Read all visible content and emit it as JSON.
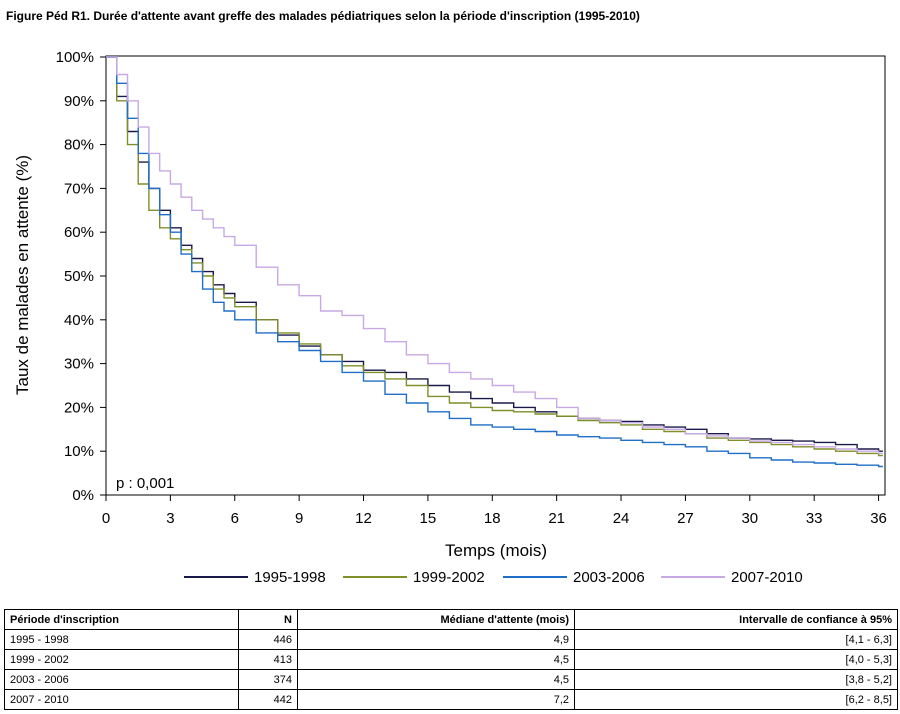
{
  "figure": {
    "title": "Figure Péd R1. Durée d'attente avant greffe des malades pédiatriques selon la période d'inscription (1995-2010)"
  },
  "chart_data": {
    "type": "line",
    "subtype": "step",
    "xlabel": "Temps (mois)",
    "ylabel": "Taux de malades en attente (%)",
    "xlim": [
      0,
      36.3
    ],
    "ylim": [
      0,
      100
    ],
    "x_ticks": [
      0,
      3,
      6,
      9,
      12,
      15,
      18,
      21,
      24,
      27,
      30,
      33,
      36
    ],
    "y_ticks": [
      0,
      10,
      20,
      30,
      40,
      50,
      60,
      70,
      80,
      90,
      100
    ],
    "y_tick_labels": [
      "0%",
      "10%",
      "20%",
      "30%",
      "40%",
      "50%",
      "60%",
      "70%",
      "80%",
      "90%",
      "100%"
    ],
    "annotation": "p : 0,001",
    "legend_position": "bottom",
    "grid": false,
    "series": [
      {
        "name": "1995-1998",
        "color": "#1a1a4a",
        "x": [
          0,
          0.5,
          1,
          1.5,
          2,
          2.5,
          3,
          3.5,
          4,
          4.5,
          5,
          5.5,
          6,
          7,
          8,
          9,
          10,
          11,
          12,
          13,
          14,
          15,
          16,
          17,
          18,
          19,
          20,
          21,
          22,
          23,
          24,
          25,
          26,
          27,
          28,
          29,
          30,
          31,
          32,
          33,
          34,
          35,
          36
        ],
        "y": [
          100,
          91,
          83,
          76,
          70,
          65,
          61,
          57,
          54,
          51,
          48,
          46,
          44,
          40,
          36.5,
          34,
          32,
          30.5,
          28.5,
          28,
          26.5,
          25,
          23.5,
          22,
          21,
          20,
          19,
          18,
          17.5,
          17,
          16.8,
          16,
          15.5,
          15,
          14,
          13,
          12.8,
          12.5,
          12.3,
          12,
          11.5,
          10.5,
          10
        ]
      },
      {
        "name": "1999-2002",
        "color": "#7f8f2a",
        "x": [
          0,
          0.5,
          1,
          1.5,
          2,
          2.5,
          3,
          3.5,
          4,
          4.5,
          5,
          5.5,
          6,
          7,
          8,
          9,
          10,
          11,
          12,
          13,
          14,
          15,
          16,
          17,
          18,
          19,
          20,
          21,
          22,
          23,
          24,
          25,
          26,
          27,
          28,
          29,
          30,
          31,
          32,
          33,
          34,
          35,
          36
        ],
        "y": [
          100,
          90,
          80,
          71,
          65,
          61,
          58.5,
          56,
          53,
          50,
          47,
          45,
          43,
          40,
          37,
          34.5,
          32,
          29.5,
          28,
          26.5,
          25,
          22.5,
          21,
          20,
          19.3,
          19,
          18.5,
          18,
          17,
          16.5,
          16,
          15,
          14.5,
          14,
          13,
          12.5,
          12,
          11.5,
          11,
          10.5,
          10,
          9.5,
          9
        ]
      },
      {
        "name": "2003-2006",
        "color": "#1f6fc8",
        "x": [
          0,
          0.5,
          1,
          1.5,
          2,
          2.5,
          3,
          3.5,
          4,
          4.5,
          5,
          5.5,
          6,
          7,
          8,
          9,
          10,
          11,
          12,
          13,
          14,
          15,
          16,
          17,
          18,
          19,
          20,
          21,
          22,
          23,
          24,
          25,
          26,
          27,
          28,
          29,
          30,
          31,
          32,
          33,
          34,
          35,
          36
        ],
        "y": [
          100,
          94,
          86,
          78,
          70,
          64,
          60,
          55,
          51,
          47,
          44,
          42,
          40,
          37,
          35,
          33,
          30.5,
          28,
          26,
          23,
          21,
          19,
          17.5,
          16,
          15.5,
          15,
          14.5,
          13.7,
          13.3,
          13,
          12.5,
          12,
          11.5,
          11,
          10,
          9.5,
          8.5,
          8,
          7.5,
          7.3,
          7,
          6.8,
          6.5
        ]
      },
      {
        "name": "2007-2010",
        "color": "#c9a8e6",
        "x": [
          0,
          0.5,
          1,
          1.5,
          2,
          2.5,
          3,
          3.5,
          4,
          4.5,
          5,
          5.5,
          6,
          7,
          8,
          9,
          10,
          11,
          12,
          13,
          14,
          15,
          16,
          17,
          18,
          19,
          20,
          21,
          22,
          23,
          24,
          25,
          26,
          27,
          28,
          29,
          30,
          31,
          32,
          33,
          34,
          35,
          36
        ],
        "y": [
          100,
          96,
          90,
          84,
          78,
          74,
          71,
          68,
          65,
          63,
          61,
          59,
          57,
          52,
          48,
          45.5,
          42,
          41,
          38,
          35,
          32,
          30,
          28,
          26.5,
          25,
          23.5,
          22,
          20,
          17.5,
          17,
          16.5,
          15.5,
          15,
          14,
          13.5,
          13,
          12.3,
          12,
          11.5,
          11,
          10.5,
          10,
          9.5
        ]
      }
    ]
  },
  "table": {
    "headers": [
      "Période d'inscription",
      "N",
      "Médiane d'attente (mois)",
      "Intervalle de confiance à 95%"
    ],
    "rows": [
      [
        "1995 - 1998",
        "446",
        "4,9",
        "[4,1 - 6,3]"
      ],
      [
        "1999 - 2002",
        "413",
        "4,5",
        "[4,0 - 5,3]"
      ],
      [
        "2003 - 2006",
        "374",
        "4,5",
        "[3,8 - 5,2]"
      ],
      [
        "2007 - 2010",
        "442",
        "7,2",
        "[6,2 - 8,5]"
      ]
    ]
  }
}
